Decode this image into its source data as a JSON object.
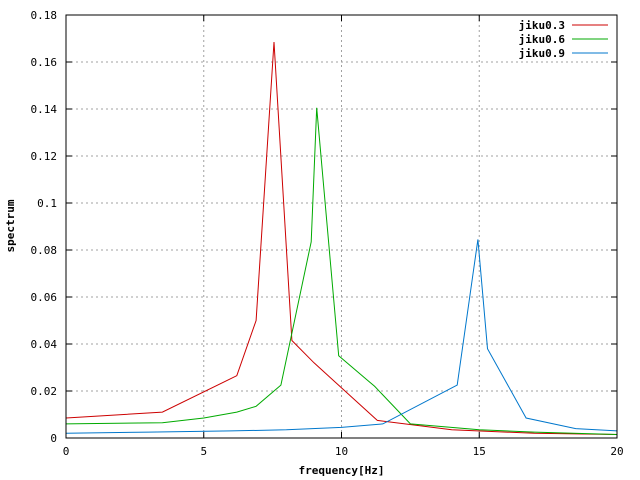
{
  "chart_data": {
    "type": "line",
    "title": "",
    "xlabel": "frequency[Hz]",
    "ylabel": "spectrum",
    "xlim": [
      0,
      20
    ],
    "ylim": [
      0,
      0.18
    ],
    "xticks": [
      0,
      5,
      10,
      15,
      20
    ],
    "xtick_labels": [
      "0",
      "5",
      "10",
      "15",
      "20"
    ],
    "yticks": [
      0,
      0.02,
      0.04,
      0.06,
      0.08,
      0.1,
      0.12,
      0.14,
      0.16,
      0.18
    ],
    "ytick_labels": [
      "0",
      "0.02",
      "0.04",
      "0.06",
      "0.08",
      "0.1",
      "0.12",
      "0.14",
      "0.16",
      "0.18"
    ],
    "grid": true,
    "legend_position": "top-right",
    "series": [
      {
        "name": "jiku0.3",
        "color": "#cc0000",
        "x": [
          0,
          3.5,
          6.2,
          6.9,
          7.55,
          8.2,
          9.0,
          11.3,
          14.0,
          17.0,
          20.0
        ],
        "y": [
          0.0085,
          0.011,
          0.0265,
          0.05,
          0.1685,
          0.0415,
          0.032,
          0.0075,
          0.0035,
          0.002,
          0.0015
        ]
      },
      {
        "name": "jiku0.6",
        "color": "#00aa00",
        "x": [
          0,
          3.5,
          5.0,
          6.2,
          6.9,
          7.8,
          8.9,
          9.1,
          9.9,
          11.2,
          12.5,
          15.0,
          17.0,
          20.0
        ],
        "y": [
          0.006,
          0.0065,
          0.0085,
          0.011,
          0.0135,
          0.0225,
          0.0835,
          0.1405,
          0.035,
          0.022,
          0.006,
          0.0035,
          0.0025,
          0.0015
        ]
      },
      {
        "name": "jiku0.9",
        "color": "#0077cc",
        "x": [
          0,
          3.0,
          6.0,
          8.0,
          10.0,
          11.5,
          14.2,
          14.95,
          15.3,
          16.7,
          18.5,
          20.0
        ],
        "y": [
          0.002,
          0.0025,
          0.003,
          0.0035,
          0.0045,
          0.006,
          0.0225,
          0.0845,
          0.038,
          0.0085,
          0.004,
          0.003
        ]
      }
    ]
  }
}
